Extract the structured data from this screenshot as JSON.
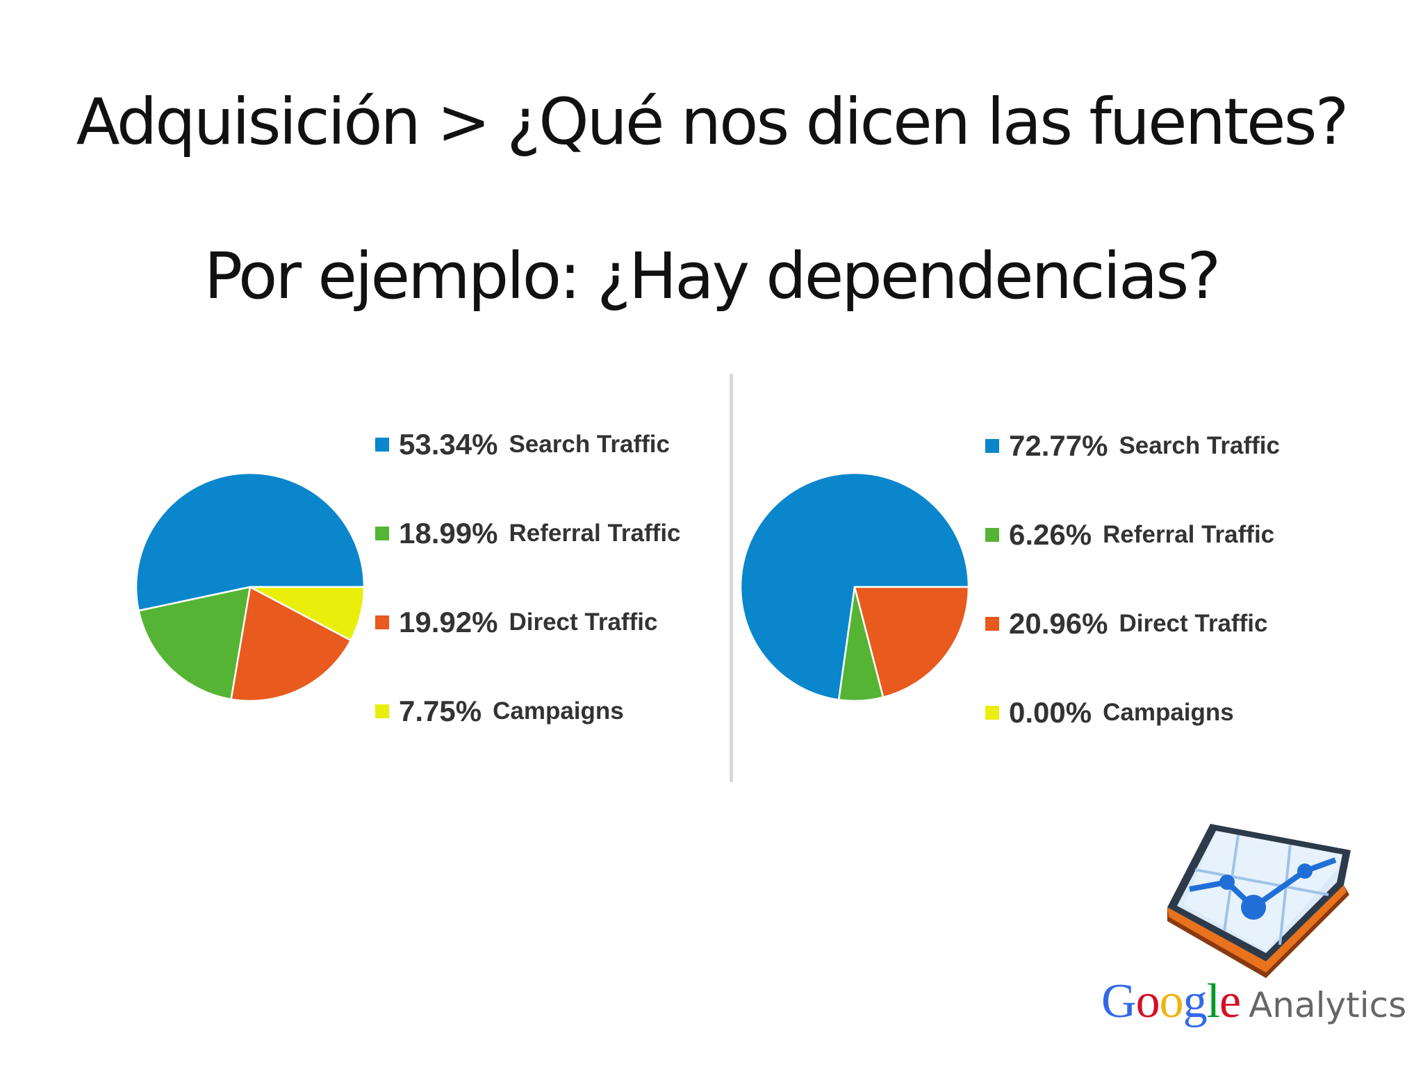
{
  "slide": {
    "title_line1": "Adquisición >  ¿Qué nos dicen las fuentes?",
    "title_line2": "Por ejemplo: ¿Hay dependencias?"
  },
  "logo": {
    "icon": "google-analytics-icon",
    "brand_text": "Google",
    "product_text": "Analytics",
    "brand_colors": [
      "#3369e8",
      "#d50f25",
      "#eeb211",
      "#3369e8",
      "#009925",
      "#d50f25"
    ]
  },
  "chart_data": [
    {
      "type": "pie",
      "legend_position": "right",
      "slices": [
        {
          "label": "53.34%",
          "name": "Search Traffic",
          "value": 53.34,
          "color": "#0a86cc"
        },
        {
          "label": "18.99%",
          "name": "Referral Traffic",
          "value": 18.99,
          "color": "#56b435"
        },
        {
          "label": "19.92%",
          "name": "Direct Traffic",
          "value": 19.92,
          "color": "#e85a1e"
        },
        {
          "label": "7.75%",
          "name": "Campaigns",
          "value": 7.75,
          "color": "#e9ef0a"
        }
      ]
    },
    {
      "type": "pie",
      "legend_position": "right",
      "slices": [
        {
          "label": "72.77%",
          "name": "Search Traffic",
          "value": 72.77,
          "color": "#0a86cc"
        },
        {
          "label": "6.26%",
          "name": "Referral Traffic",
          "value": 6.26,
          "color": "#56b435"
        },
        {
          "label": "20.96%",
          "name": "Direct Traffic",
          "value": 20.96,
          "color": "#e85a1e"
        },
        {
          "label": "0.00%",
          "name": "Campaigns",
          "value": 0.0,
          "color": "#e9ef0a"
        }
      ]
    }
  ]
}
